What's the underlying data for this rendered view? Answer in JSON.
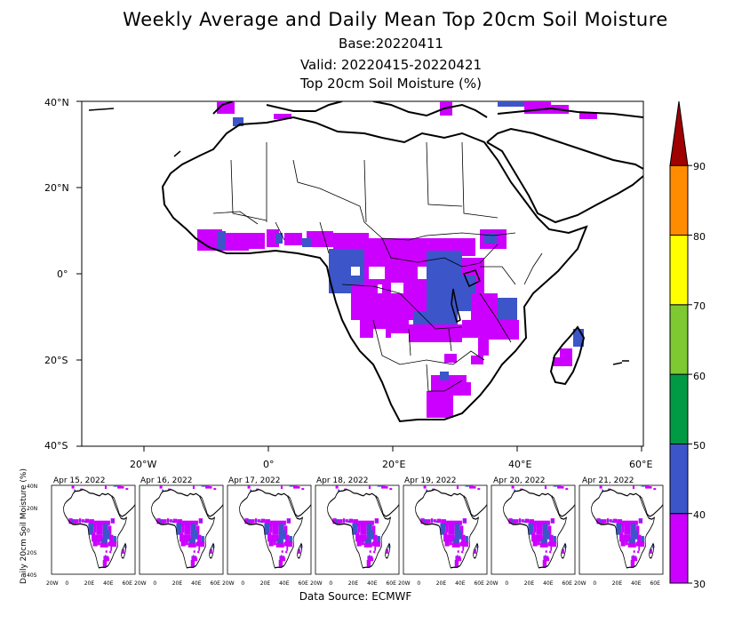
{
  "title": "Weekly Average and Daily Mean Top 20cm Soil Moisture",
  "base": "Base:20220411",
  "valid": "Valid: 20220415-20220421",
  "variable": "Top 20cm Soil Moisture (%)",
  "lat_ticks": [
    "40°N",
    "20°N",
    "0°",
    "20°S",
    "40°S"
  ],
  "lon_ticks": [
    "20°W",
    "0°",
    "20°E",
    "40°E",
    "60°E"
  ],
  "colorbar": {
    "levels": [
      "30",
      "40",
      "50",
      "60",
      "70",
      "80",
      "90"
    ],
    "colors": [
      "#cc00ff",
      "#3c55c9",
      "#009a44",
      "#7ec832",
      "#ffff00",
      "#ff8c00",
      "#ff4000",
      "#a00000"
    ]
  },
  "daily_panels": {
    "ylabel": "Daily 20cm Soil Moisture (%)",
    "dates": [
      "Apr 15, 2022",
      "Apr 16, 2022",
      "Apr 17, 2022",
      "Apr 18, 2022",
      "Apr 19, 2022",
      "Apr 20, 2022",
      "Apr 21, 2022"
    ],
    "lat_ticks": [
      "40N",
      "20N",
      "0",
      "20S",
      "40S"
    ],
    "lon_ticks": [
      "20W",
      "0",
      "20E",
      "40E",
      "60E"
    ]
  },
  "source": "Data Source: ECMWF"
}
